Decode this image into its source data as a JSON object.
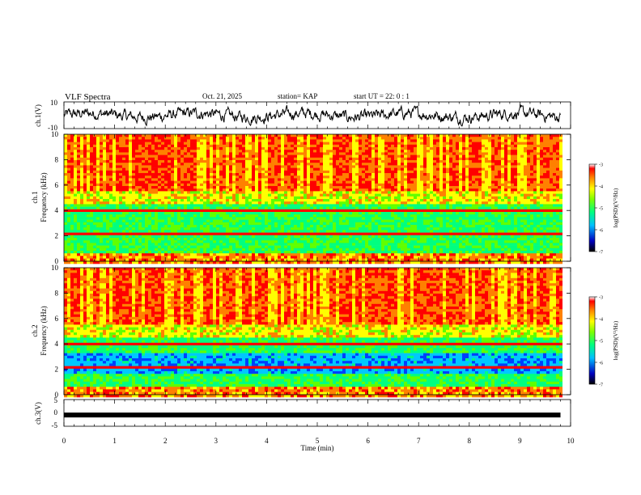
{
  "header": {
    "title": "VLF Spectra",
    "date": "Oct. 21, 2025",
    "station": "station= KAP",
    "start_ut": "start UT =  22: 0  : 1"
  },
  "chart_data": [
    {
      "type": "line",
      "name": "ch1-waveform",
      "ylabel": "ch.1(V)",
      "ylim": [
        -10,
        10
      ],
      "yticks": [
        "10",
        "-10"
      ],
      "xlim": [
        0,
        10
      ],
      "data_end_min": 9.8
    },
    {
      "type": "heatmap",
      "name": "ch1-spectrogram",
      "ylabel_line1": "ch.1",
      "ylabel_line2": "Frequency (kHz)",
      "ylim": [
        0,
        10
      ],
      "yticks": [
        "0",
        "2",
        "4",
        "6",
        "8",
        "10"
      ],
      "colorbar": {
        "label": "log(PSD)(V²/Hz)",
        "range": [
          -7,
          -3
        ],
        "ticks": [
          "-3",
          "-4",
          "-5",
          "-6",
          "-7"
        ]
      }
    },
    {
      "type": "heatmap",
      "name": "ch2-spectrogram",
      "ylabel_line1": "ch.2",
      "ylabel_line2": "Frequency (kHz)",
      "ylim": [
        0,
        10
      ],
      "yticks": [
        "0",
        "2",
        "4",
        "6",
        "8",
        "10"
      ],
      "colorbar": {
        "label": "log(PSD)(V²/Hz)",
        "range": [
          -7,
          -3
        ],
        "ticks": [
          "-3",
          "-4",
          "-5",
          "-6",
          "-7"
        ]
      }
    },
    {
      "type": "line",
      "name": "ch3-waveform",
      "ylabel": "ch.3(V)",
      "ylim": [
        -5,
        5
      ],
      "yticks": [
        "5",
        "0",
        "-5"
      ],
      "level": -0.8
    }
  ],
  "xaxis": {
    "label": "Time (min)",
    "ticks": [
      "0",
      "1",
      "2",
      "3",
      "4",
      "5",
      "6",
      "7",
      "8",
      "9",
      "10"
    ],
    "range": [
      0,
      10
    ]
  },
  "colors": {
    "palette": [
      "#000000",
      "#0000a0",
      "#0040ff",
      "#00c8ff",
      "#00ff80",
      "#60ff00",
      "#ffff00",
      "#ff8000",
      "#ff0000",
      "#ffffff"
    ]
  }
}
